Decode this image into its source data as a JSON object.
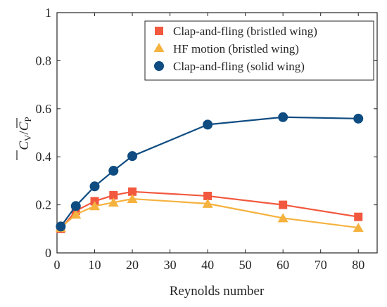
{
  "chart_data": {
    "type": "line",
    "xlabel": "Reynolds number",
    "ylabel": {
      "c": "C",
      "sub_v": "V",
      "slash": "/",
      "sub_p": "P"
    },
    "xlim": [
      0,
      85
    ],
    "ylim": [
      0,
      1
    ],
    "xticks": [
      0,
      10,
      20,
      30,
      40,
      50,
      60,
      70,
      80
    ],
    "yticks": [
      0,
      0.2,
      0.4,
      0.6,
      0.8,
      1
    ],
    "xtick_labels": [
      "0",
      "10",
      "20",
      "30",
      "40",
      "50",
      "60",
      "70",
      "80"
    ],
    "ytick_labels": [
      "0",
      "0.2",
      "0.4",
      "0.6",
      "0.8",
      "1"
    ],
    "grid": false,
    "legend_position": "top-right",
    "series": [
      {
        "name": "Clap-and-fling (bristled wing)",
        "marker": "square",
        "color": "#F2583E",
        "x": [
          1,
          5,
          10,
          15,
          20,
          40,
          60,
          80
        ],
        "y": [
          0.1,
          0.175,
          0.215,
          0.24,
          0.255,
          0.237,
          0.2,
          0.15
        ]
      },
      {
        "name": "HF motion (bristled wing)",
        "marker": "triangle",
        "color": "#F5B23E",
        "x": [
          1,
          5,
          10,
          15,
          20,
          40,
          60,
          80
        ],
        "y": [
          0.105,
          0.16,
          0.195,
          0.21,
          0.225,
          0.205,
          0.145,
          0.105
        ]
      },
      {
        "name": "Clap-and-fling (solid wing)",
        "marker": "circle",
        "color": "#0F4C81",
        "x": [
          1,
          5,
          10,
          15,
          20,
          40,
          60,
          80
        ],
        "y": [
          0.11,
          0.195,
          0.277,
          0.342,
          0.403,
          0.534,
          0.565,
          0.559
        ]
      }
    ]
  }
}
